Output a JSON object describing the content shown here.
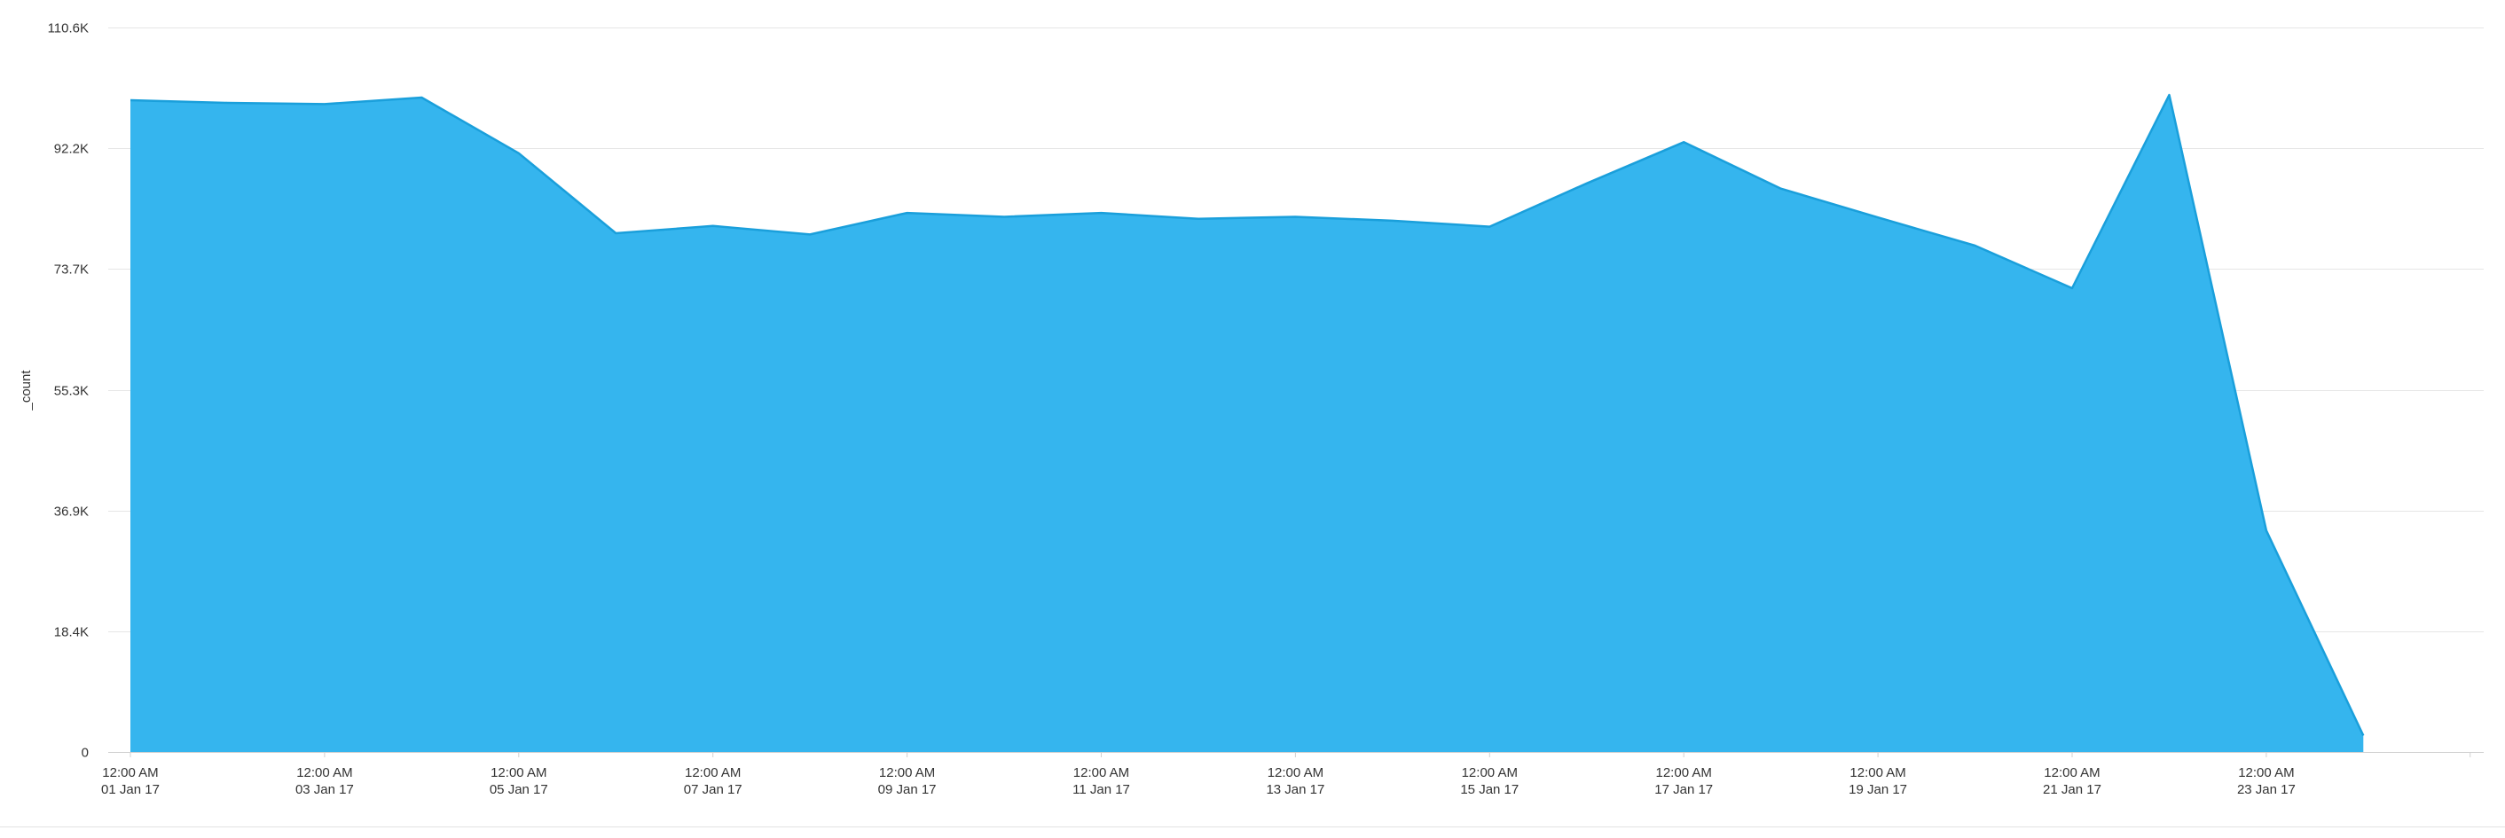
{
  "chart_data": {
    "type": "area",
    "title": "",
    "xlabel": "",
    "ylabel": "_count",
    "x": [
      "2017-01-01",
      "2017-01-02",
      "2017-01-03",
      "2017-01-04",
      "2017-01-05",
      "2017-01-06",
      "2017-01-07",
      "2017-01-08",
      "2017-01-09",
      "2017-01-10",
      "2017-01-11",
      "2017-01-12",
      "2017-01-13",
      "2017-01-14",
      "2017-01-15",
      "2017-01-16",
      "2017-01-17",
      "2017-01-18",
      "2017-01-19",
      "2017-01-20",
      "2017-01-21",
      "2017-01-22",
      "2017-01-23",
      "2017-01-24"
    ],
    "series": [
      {
        "name": "",
        "values": [
          99500,
          99100,
          98900,
          99900,
          91400,
          79200,
          80300,
          79000,
          82300,
          81700,
          82300,
          81400,
          81700,
          81100,
          80200,
          86800,
          93100,
          86000,
          81600,
          77300,
          70800,
          100300,
          33800,
          2500
        ]
      }
    ],
    "ylim": [
      0,
      110600
    ],
    "yticks": [
      {
        "value": 0,
        "label": "0"
      },
      {
        "value": 18433,
        "label": "18.4K"
      },
      {
        "value": 36867,
        "label": "36.9K"
      },
      {
        "value": 55300,
        "label": "55.3K"
      },
      {
        "value": 73733,
        "label": "73.7K"
      },
      {
        "value": 92167,
        "label": "92.2K"
      },
      {
        "value": 110600,
        "label": "110.6K"
      }
    ],
    "xticks": [
      {
        "x": "2017-01-01",
        "time": "12:00 AM",
        "date": "01 Jan 17"
      },
      {
        "x": "2017-01-03",
        "time": "12:00 AM",
        "date": "03 Jan 17"
      },
      {
        "x": "2017-01-05",
        "time": "12:00 AM",
        "date": "05 Jan 17"
      },
      {
        "x": "2017-01-07",
        "time": "12:00 AM",
        "date": "07 Jan 17"
      },
      {
        "x": "2017-01-09",
        "time": "12:00 AM",
        "date": "09 Jan 17"
      },
      {
        "x": "2017-01-11",
        "time": "12:00 AM",
        "date": "11 Jan 17"
      },
      {
        "x": "2017-01-13",
        "time": "12:00 AM",
        "date": "13 Jan 17"
      },
      {
        "x": "2017-01-15",
        "time": "12:00 AM",
        "date": "15 Jan 17"
      },
      {
        "x": "2017-01-17",
        "time": "12:00 AM",
        "date": "17 Jan 17"
      },
      {
        "x": "2017-01-19",
        "time": "12:00 AM",
        "date": "19 Jan 17"
      },
      {
        "x": "2017-01-21",
        "time": "12:00 AM",
        "date": "21 Jan 17"
      },
      {
        "x": "2017-01-23",
        "time": "12:00 AM",
        "date": "23 Jan 17"
      }
    ],
    "grid": true,
    "legend": "none",
    "colors": {
      "fill": "#35b5ee",
      "line": "#1a9fdb",
      "grid": "#e6e6e6",
      "axis": "#d0d0d0",
      "text": "#333333"
    }
  }
}
